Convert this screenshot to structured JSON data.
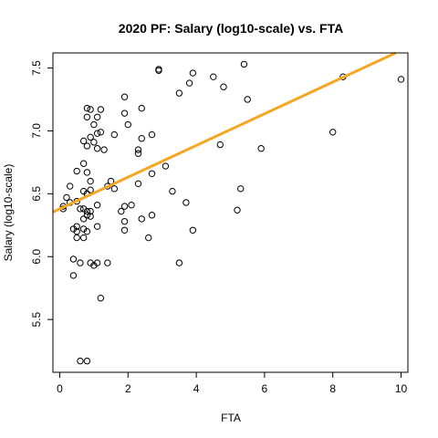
{
  "chart_data": {
    "type": "scatter",
    "title": "2020 PF: Salary (log10-scale) vs. FTA",
    "xlabel": "FTA",
    "ylabel": "Salary (log10-scale)",
    "xlim": [
      -0.2,
      10.2
    ],
    "ylim": [
      5.08,
      7.62
    ],
    "xticks": [
      0,
      2,
      4,
      6,
      8,
      10
    ],
    "xtick_labels": [
      "0",
      "2",
      "4",
      "6",
      "8",
      "10"
    ],
    "yticks": [
      5.5,
      6.0,
      6.5,
      7.0,
      7.5
    ],
    "ytick_labels": [
      "5.5",
      "6.0",
      "6.5",
      "7.0",
      "7.5"
    ],
    "fit_line": {
      "intercept": 6.38,
      "slope": 0.126,
      "color": "#f5a623"
    },
    "point_color": "#000000",
    "points": [
      [
        0.1,
        6.4
      ],
      [
        0.1,
        6.38
      ],
      [
        0.2,
        6.47
      ],
      [
        0.3,
        6.56
      ],
      [
        0.3,
        6.43
      ],
      [
        0.4,
        6.22
      ],
      [
        0.4,
        5.98
      ],
      [
        0.4,
        5.85
      ],
      [
        0.5,
        6.68
      ],
      [
        0.5,
        6.44
      ],
      [
        0.5,
        6.24
      ],
      [
        0.5,
        6.2
      ],
      [
        0.5,
        6.15
      ],
      [
        0.6,
        6.38
      ],
      [
        0.6,
        5.95
      ],
      [
        0.6,
        5.17
      ],
      [
        0.7,
        6.92
      ],
      [
        0.7,
        6.74
      ],
      [
        0.7,
        6.52
      ],
      [
        0.7,
        6.38
      ],
      [
        0.7,
        6.3
      ],
      [
        0.7,
        6.22
      ],
      [
        0.7,
        6.15
      ],
      [
        0.8,
        7.18
      ],
      [
        0.8,
        7.11
      ],
      [
        0.8,
        6.88
      ],
      [
        0.8,
        6.67
      ],
      [
        0.8,
        6.5
      ],
      [
        0.8,
        6.36
      ],
      [
        0.8,
        6.33
      ],
      [
        0.8,
        6.2
      ],
      [
        0.8,
        5.17
      ],
      [
        0.9,
        7.17
      ],
      [
        0.9,
        6.95
      ],
      [
        0.9,
        6.6
      ],
      [
        0.9,
        6.53
      ],
      [
        0.9,
        6.36
      ],
      [
        0.9,
        6.32
      ],
      [
        0.9,
        5.95
      ],
      [
        1.0,
        7.05
      ],
      [
        1.0,
        6.91
      ],
      [
        1.0,
        5.93
      ],
      [
        1.1,
        7.11
      ],
      [
        1.1,
        6.98
      ],
      [
        1.1,
        6.86
      ],
      [
        1.1,
        6.41
      ],
      [
        1.1,
        6.24
      ],
      [
        1.1,
        5.95
      ],
      [
        1.2,
        7.17
      ],
      [
        1.2,
        6.99
      ],
      [
        1.2,
        5.67
      ],
      [
        1.3,
        6.85
      ],
      [
        1.4,
        6.56
      ],
      [
        1.4,
        5.95
      ],
      [
        1.5,
        6.6
      ],
      [
        1.6,
        6.97
      ],
      [
        1.6,
        6.54
      ],
      [
        1.8,
        6.36
      ],
      [
        1.9,
        7.27
      ],
      [
        1.9,
        7.14
      ],
      [
        1.9,
        6.4
      ],
      [
        1.9,
        6.28
      ],
      [
        1.9,
        6.21
      ],
      [
        2.0,
        7.05
      ],
      [
        2.1,
        6.41
      ],
      [
        2.3,
        6.85
      ],
      [
        2.3,
        6.82
      ],
      [
        2.3,
        6.58
      ],
      [
        2.4,
        7.18
      ],
      [
        2.4,
        6.94
      ],
      [
        2.4,
        6.3
      ],
      [
        2.6,
        6.15
      ],
      [
        2.7,
        6.97
      ],
      [
        2.7,
        6.66
      ],
      [
        2.7,
        6.33
      ],
      [
        2.9,
        7.49
      ],
      [
        2.9,
        7.48
      ],
      [
        3.1,
        6.72
      ],
      [
        3.3,
        6.52
      ],
      [
        3.5,
        7.3
      ],
      [
        3.5,
        5.95
      ],
      [
        3.7,
        6.43
      ],
      [
        3.8,
        7.38
      ],
      [
        3.9,
        7.46
      ],
      [
        3.9,
        6.21
      ],
      [
        4.5,
        7.43
      ],
      [
        4.7,
        6.89
      ],
      [
        4.8,
        7.35
      ],
      [
        5.2,
        6.37
      ],
      [
        5.3,
        6.54
      ],
      [
        5.4,
        7.53
      ],
      [
        5.5,
        7.25
      ],
      [
        5.9,
        6.86
      ],
      [
        8.0,
        6.99
      ],
      [
        8.3,
        7.43
      ],
      [
        10.0,
        7.41
      ]
    ]
  }
}
